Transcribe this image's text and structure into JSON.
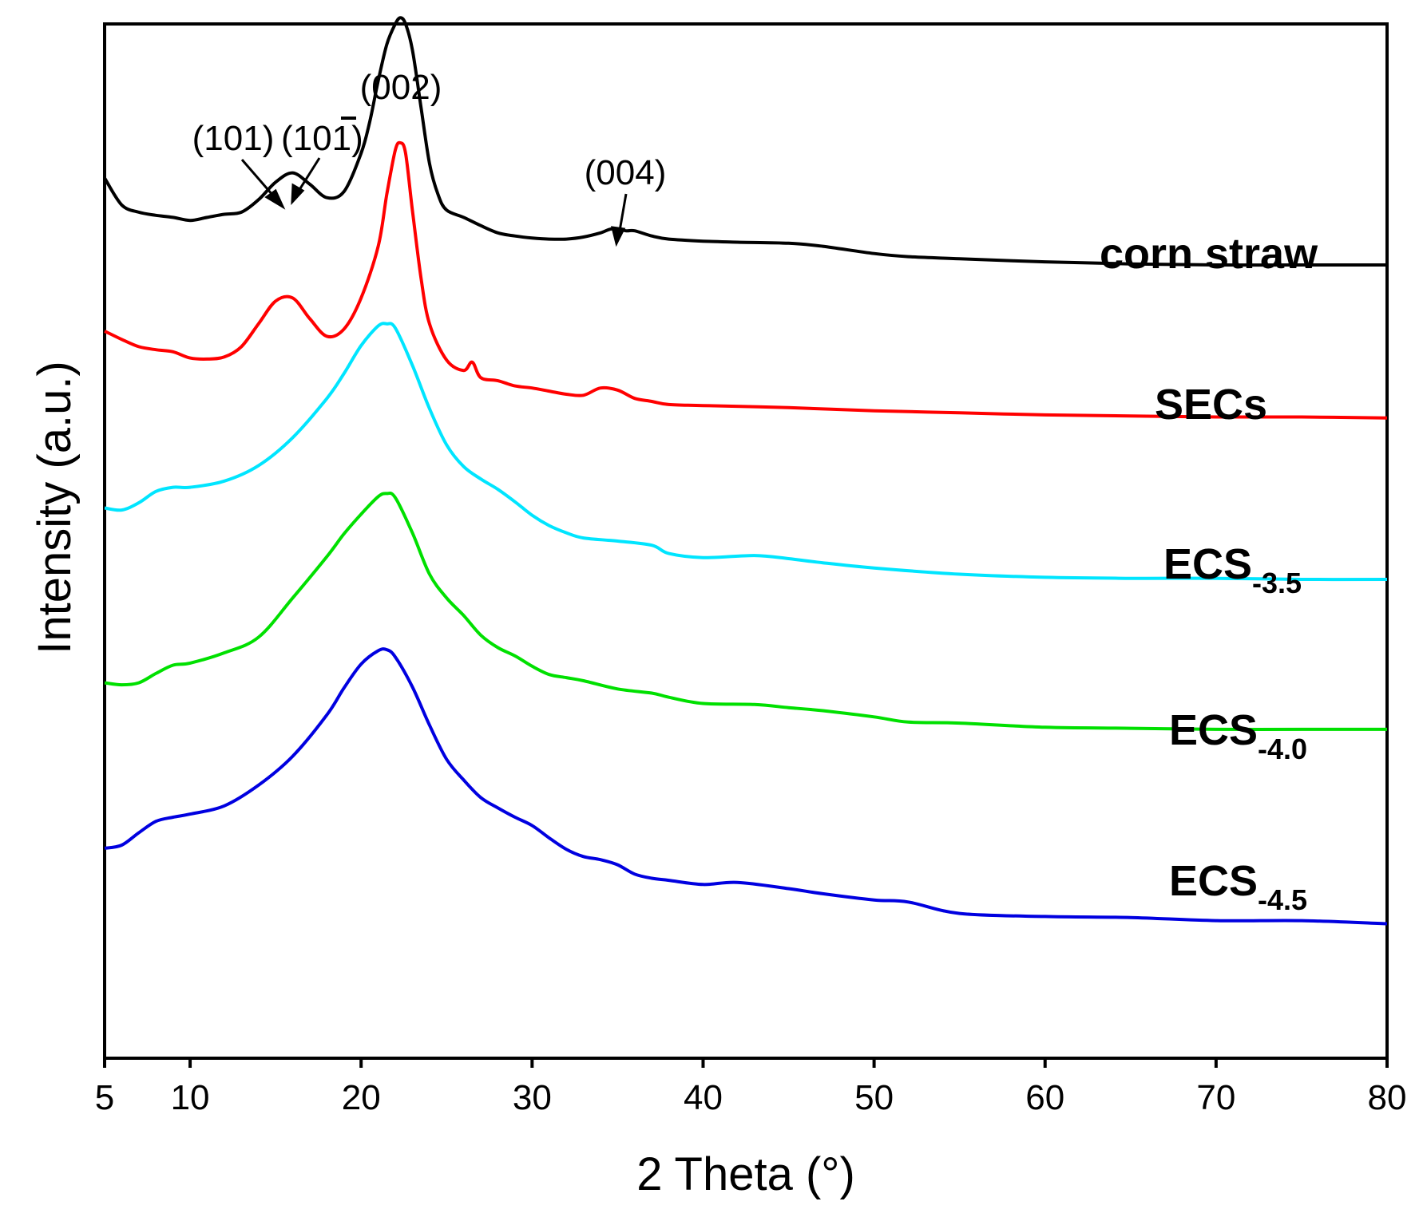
{
  "chart_data": {
    "type": "line",
    "title": "",
    "xlabel": "2 Theta (°)",
    "ylabel": "Intensity (a.u.)",
    "xlim": [
      5,
      80
    ],
    "ylim": [
      0,
      100
    ],
    "xticks": [
      5,
      10,
      20,
      30,
      40,
      50,
      60,
      70,
      80
    ],
    "grid": false,
    "yticks_shown": false,
    "series": [
      {
        "name": "corn straw",
        "color": "#000000",
        "x": [
          5,
          6,
          7,
          8,
          9,
          10,
          11,
          12,
          13,
          14,
          15,
          16,
          17,
          18,
          19,
          20,
          20.5,
          21,
          21.5,
          22,
          22.3,
          22.6,
          23,
          23.5,
          24,
          24.5,
          25,
          26,
          27,
          28,
          29,
          30,
          31,
          32,
          33,
          34,
          34.7,
          35.5,
          36,
          37,
          38,
          40,
          42,
          45,
          47,
          50,
          52,
          55,
          60,
          65,
          70,
          75,
          80
        ],
        "y": [
          85.1,
          82.5,
          81.8,
          81.5,
          81.3,
          81.0,
          81.3,
          81.6,
          81.8,
          83.0,
          84.7,
          85.6,
          84.5,
          83.2,
          83.8,
          87.5,
          90.5,
          94.5,
          98.0,
          100.0,
          100.6,
          100.0,
          97.5,
          92.0,
          86.5,
          83.5,
          82.0,
          81.3,
          80.5,
          79.8,
          79.5,
          79.3,
          79.2,
          79.2,
          79.4,
          79.8,
          80.2,
          80.0,
          80.0,
          79.5,
          79.2,
          79.0,
          78.9,
          78.8,
          78.5,
          77.8,
          77.5,
          77.3,
          77.0,
          76.8,
          76.7,
          76.7,
          76.7
        ]
      },
      {
        "name": "SECs",
        "color": "#ff0000",
        "x": [
          5,
          6,
          7,
          8,
          9,
          10,
          11,
          12,
          13,
          14,
          15,
          16,
          17,
          18,
          19,
          20,
          21,
          21.5,
          22,
          22.3,
          22.6,
          23,
          23.5,
          24,
          25,
          26,
          26.5,
          27,
          28,
          29,
          30,
          31,
          32,
          33,
          34,
          35,
          36,
          37,
          38,
          40,
          45,
          50,
          55,
          60,
          65,
          70,
          75,
          80
        ],
        "y": [
          70.3,
          69.5,
          68.8,
          68.5,
          68.3,
          67.7,
          67.6,
          67.8,
          68.8,
          71.0,
          73.2,
          73.5,
          71.5,
          69.8,
          70.5,
          73.5,
          78.5,
          83.5,
          87.8,
          88.5,
          87.5,
          82.0,
          75.5,
          71.0,
          67.5,
          66.5,
          67.3,
          65.8,
          65.5,
          65.0,
          64.8,
          64.5,
          64.2,
          64.1,
          64.8,
          64.6,
          63.8,
          63.5,
          63.2,
          63.1,
          62.9,
          62.6,
          62.4,
          62.2,
          62.1,
          62.0,
          62.0,
          61.9
        ]
      },
      {
        "name": "ECS-3.5",
        "color": "#00e5ff",
        "x": [
          5,
          6,
          7,
          8,
          9,
          10,
          12,
          14,
          16,
          18,
          19,
          20,
          21,
          21.5,
          22,
          23,
          24,
          25,
          26,
          27,
          28,
          29,
          30,
          31,
          32,
          33,
          35,
          37,
          38,
          40,
          43,
          45,
          47,
          50,
          55,
          60,
          65,
          70,
          75,
          80
        ],
        "y": [
          53.2,
          53.0,
          53.7,
          54.8,
          55.2,
          55.2,
          55.8,
          57.3,
          60.0,
          63.8,
          66.2,
          68.9,
          70.8,
          71.0,
          70.6,
          67.0,
          62.8,
          59.3,
          57.2,
          56.0,
          55.0,
          53.8,
          52.5,
          51.5,
          50.8,
          50.3,
          50.0,
          49.6,
          48.8,
          48.4,
          48.6,
          48.3,
          47.9,
          47.4,
          46.8,
          46.5,
          46.4,
          46.4,
          46.3,
          46.3
        ]
      },
      {
        "name": "ECS-4.0",
        "color": "#00e000",
        "x": [
          5,
          6,
          7,
          8,
          9,
          10,
          12,
          14,
          16,
          18,
          19,
          20,
          21,
          21.5,
          22,
          23,
          24,
          25,
          26,
          27,
          28,
          29,
          30,
          31,
          32,
          33,
          35,
          37,
          38,
          40,
          43,
          45,
          47,
          50,
          52,
          55,
          60,
          65,
          70,
          75,
          80
        ],
        "y": [
          36.3,
          36.1,
          36.3,
          37.2,
          38.0,
          38.2,
          39.2,
          40.7,
          44.5,
          48.5,
          50.7,
          52.6,
          54.3,
          54.6,
          54.2,
          50.8,
          46.8,
          44.5,
          42.8,
          40.9,
          39.7,
          38.9,
          37.9,
          37.1,
          36.8,
          36.5,
          35.7,
          35.3,
          34.9,
          34.3,
          34.2,
          33.9,
          33.6,
          33.0,
          32.5,
          32.4,
          32.0,
          31.9,
          31.8,
          31.8,
          31.8
        ]
      },
      {
        "name": "ECS-4.5",
        "color": "#0000e0",
        "x": [
          5,
          6,
          7,
          8,
          9,
          10,
          12,
          14,
          16,
          18,
          19,
          20,
          21,
          21.5,
          22,
          23,
          24,
          25,
          26,
          27,
          28,
          29,
          30,
          31,
          32,
          33,
          34,
          35,
          36,
          37,
          38,
          40,
          42,
          45,
          47,
          50,
          52,
          55,
          60,
          65,
          70,
          75,
          80
        ],
        "y": [
          20.3,
          20.6,
          21.8,
          22.9,
          23.3,
          23.6,
          24.4,
          26.4,
          29.2,
          33.2,
          35.8,
          38.1,
          39.4,
          39.5,
          38.8,
          35.9,
          32.2,
          28.9,
          26.9,
          25.2,
          24.2,
          23.3,
          22.5,
          21.3,
          20.2,
          19.5,
          19.2,
          18.7,
          17.8,
          17.4,
          17.2,
          16.8,
          17.0,
          16.4,
          15.9,
          15.3,
          15.1,
          14.0,
          13.7,
          13.6,
          13.3,
          13.3,
          13.0
        ]
      }
    ],
    "series_labels": [
      {
        "main": "corn straw",
        "sub": ""
      },
      {
        "main": "SECs",
        "sub": ""
      },
      {
        "main": "ECS",
        "sub": "-3.5"
      },
      {
        "main": "ECS",
        "sub": "-4.0"
      },
      {
        "main": "ECS",
        "sub": "-4.5"
      }
    ],
    "annotations": [
      {
        "text": "(002)",
        "x": 22.3
      },
      {
        "text": "(101)",
        "x": 15.3
      },
      {
        "text": "(10",
        "bar_digit": "1",
        "close": ")",
        "x": 16.2
      },
      {
        "text": "(004)",
        "x": 34.8
      }
    ]
  }
}
